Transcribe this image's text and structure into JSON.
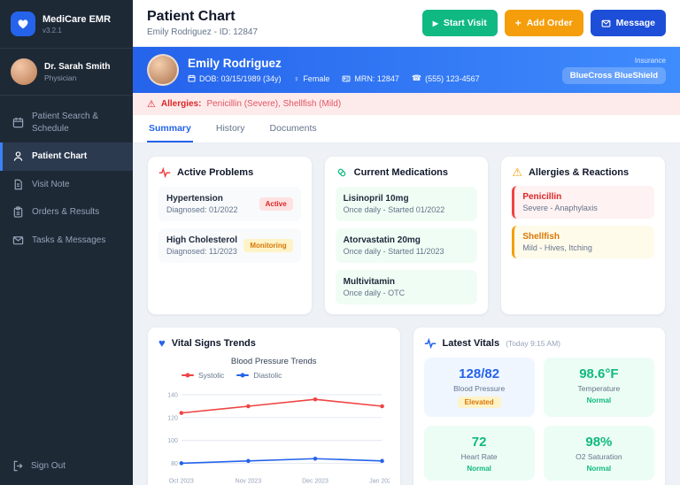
{
  "app": {
    "name": "MediCare EMR",
    "version": "v3.2.1"
  },
  "user": {
    "name": "Dr. Sarah Smith",
    "role": "Physician"
  },
  "sidebar": {
    "items": [
      {
        "label": "Patient Search & Schedule"
      },
      {
        "label": "Patient Chart"
      },
      {
        "label": "Visit Note"
      },
      {
        "label": "Orders & Results"
      },
      {
        "label": "Tasks & Messages"
      }
    ],
    "sign_out": "Sign Out"
  },
  "header": {
    "title": "Patient Chart",
    "subtitle": "Emily Rodriguez - ID: 12847",
    "start_visit": "Start Visit",
    "add_order": "Add Order",
    "message": "Message"
  },
  "banner": {
    "name": "Emily Rodriguez",
    "dob": "DOB: 03/15/1989 (34y)",
    "sex": "Female",
    "mrn": "MRN: 12847",
    "phone": "(555) 123-4567",
    "insurance_label": "Insurance",
    "insurance": "BlueCross BlueShield"
  },
  "allergy_bar": {
    "label": "Allergies:",
    "text": "Penicillin (Severe), Shellfish (Mild)"
  },
  "tabs": [
    {
      "label": "Summary",
      "active": true
    },
    {
      "label": "History",
      "active": false
    },
    {
      "label": "Documents",
      "active": false
    }
  ],
  "problems": {
    "title": "Active Problems",
    "items": [
      {
        "name": "Hypertension",
        "detail": "Diagnosed: 01/2022",
        "badge": "Active"
      },
      {
        "name": "High Cholesterol",
        "detail": "Diagnosed: 11/2023",
        "badge": "Monitoring"
      }
    ]
  },
  "medications": {
    "title": "Current Medications",
    "items": [
      {
        "name": "Lisinopril 10mg",
        "detail": "Once daily - Started 01/2022"
      },
      {
        "name": "Atorvastatin 20mg",
        "detail": "Once daily - Started 11/2023"
      },
      {
        "name": "Multivitamin",
        "detail": "Once daily - OTC"
      }
    ]
  },
  "allergies": {
    "title": "Allergies & Reactions",
    "items": [
      {
        "name": "Penicillin",
        "detail": "Severe - Anaphylaxis",
        "severity": "severe"
      },
      {
        "name": "Shellfish",
        "detail": "Mild - Hives, Itching",
        "severity": "mild"
      }
    ]
  },
  "vitals_trends": {
    "title": "Vital Signs Trends"
  },
  "latest_vitals": {
    "title": "Latest Vitals",
    "time": "(Today 9:15 AM)",
    "items": [
      {
        "value": "128/82",
        "label": "Blood Pressure",
        "status": "Elevated"
      },
      {
        "value": "98.6°F",
        "label": "Temperature",
        "status": "Normal"
      },
      {
        "value": "72",
        "label": "Heart Rate",
        "status": "Normal"
      },
      {
        "value": "98%",
        "label": "O2 Saturation",
        "status": "Normal"
      }
    ]
  },
  "chart_data": {
    "type": "line",
    "title": "Blood Pressure Trends",
    "x": [
      "Oct 2023",
      "Nov 2023",
      "Dec 2023",
      "Jan 2024"
    ],
    "series": [
      {
        "name": "Systolic",
        "color": "#ef4444",
        "values": [
          124,
          130,
          136,
          130
        ]
      },
      {
        "name": "Diastolic",
        "color": "#2563eb",
        "values": [
          80,
          82,
          84,
          82
        ]
      }
    ],
    "ylim": [
      72,
      146
    ],
    "yticks": [
      80,
      100,
      120,
      140
    ],
    "grid": true,
    "legend_position": "top-left"
  },
  "colors": {
    "accent_blue": "#2563eb",
    "green": "#10b981",
    "orange": "#f59e0b",
    "red": "#ef4444",
    "grid": "#e2e8f0",
    "tick": "#94a3b8"
  }
}
